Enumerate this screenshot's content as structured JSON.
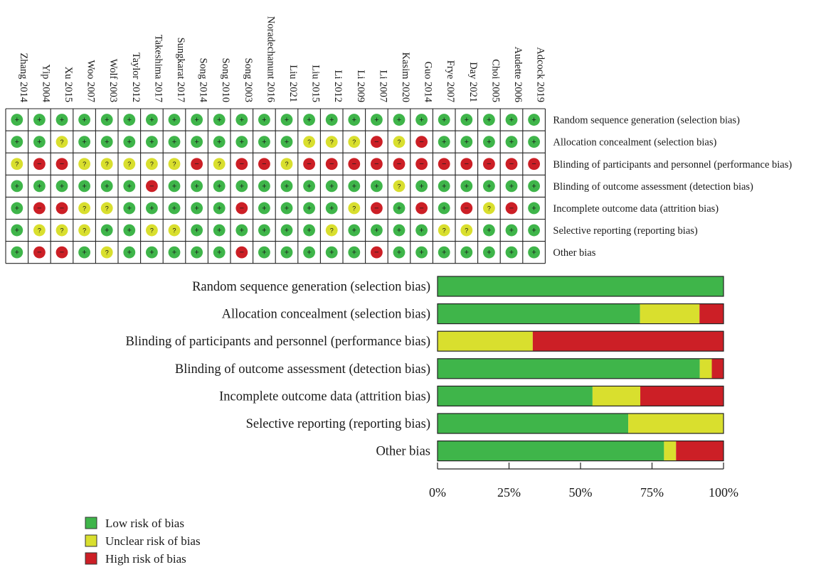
{
  "legend": {
    "low": "Low risk of bias",
    "unclear": "Unclear risk of bias",
    "high": "High risk of bias"
  },
  "colors": {
    "low": "#3fb54a",
    "unclear": "#d9df2e",
    "high": "#cc1f26"
  },
  "symbols": {
    "low": "+",
    "unclear": "?",
    "high": "−"
  },
  "chart_data": [
    {
      "type": "table",
      "studies": [
        "Zhang 2014",
        "Yip 2004",
        "Xu 2015",
        "Woo 2007",
        "Wolf 2003",
        "Taylor 2012",
        "Takeshima 2017",
        "Sungkarat 2017",
        "Song 2014",
        "Song 2010",
        "Song 2003",
        "Noradechanunt 2016",
        "Liu 2021",
        "Liu 2015",
        "Li 2012",
        "Li 2009",
        "Li 2007",
        "Kasim 2020",
        "Guo 2014",
        "Frye 2007",
        "Day 2021",
        "Choi 2005",
        "Audette 2006",
        "Adcock 2019"
      ],
      "domains": [
        "Random sequence generation (selection bias)",
        "Allocation concealment (selection bias)",
        "Blinding of participants and personnel (performance bias)",
        "Blinding of outcome assessment (detection bias)",
        "Incomplete outcome data (attrition bias)",
        "Selective reporting (reporting bias)",
        "Other bias"
      ],
      "judgements": [
        [
          "low",
          "low",
          "low",
          "low",
          "low",
          "low",
          "low",
          "low",
          "low",
          "low",
          "low",
          "low",
          "low",
          "low",
          "low",
          "low",
          "low",
          "low",
          "low",
          "low",
          "low",
          "low",
          "low",
          "low"
        ],
        [
          "low",
          "low",
          "unclear",
          "low",
          "low",
          "low",
          "low",
          "low",
          "low",
          "low",
          "low",
          "low",
          "low",
          "unclear",
          "unclear",
          "unclear",
          "high",
          "unclear",
          "high",
          "low",
          "low",
          "low",
          "low",
          "low"
        ],
        [
          "unclear",
          "high",
          "high",
          "unclear",
          "unclear",
          "unclear",
          "unclear",
          "unclear",
          "high",
          "unclear",
          "high",
          "high",
          "unclear",
          "high",
          "high",
          "high",
          "high",
          "high",
          "high",
          "high",
          "high",
          "high",
          "high",
          "high"
        ],
        [
          "low",
          "low",
          "low",
          "low",
          "low",
          "low",
          "high",
          "low",
          "low",
          "low",
          "low",
          "low",
          "low",
          "low",
          "low",
          "low",
          "low",
          "unclear",
          "low",
          "low",
          "low",
          "low",
          "low",
          "low"
        ],
        [
          "low",
          "high",
          "high",
          "unclear",
          "unclear",
          "low",
          "low",
          "low",
          "low",
          "low",
          "high",
          "low",
          "low",
          "low",
          "low",
          "unclear",
          "high",
          "low",
          "high",
          "low",
          "high",
          "unclear",
          "high",
          "low"
        ],
        [
          "low",
          "unclear",
          "unclear",
          "unclear",
          "low",
          "low",
          "unclear",
          "unclear",
          "low",
          "low",
          "low",
          "low",
          "low",
          "low",
          "unclear",
          "low",
          "low",
          "low",
          "low",
          "unclear",
          "unclear",
          "low",
          "low",
          "low"
        ],
        [
          "low",
          "high",
          "high",
          "low",
          "unclear",
          "low",
          "low",
          "low",
          "low",
          "low",
          "high",
          "low",
          "low",
          "low",
          "low",
          "low",
          "high",
          "low",
          "low",
          "low",
          "low",
          "low",
          "low",
          "low"
        ]
      ]
    },
    {
      "type": "bar",
      "stacked": true,
      "orientation": "horizontal",
      "categories": [
        "Random sequence generation (selection bias)",
        "Allocation concealment (selection bias)",
        "Blinding of participants and personnel (performance bias)",
        "Blinding of outcome assessment (detection bias)",
        "Incomplete outcome data (attrition bias)",
        "Selective reporting (reporting bias)",
        "Other bias"
      ],
      "series": [
        {
          "name": "Low risk of bias",
          "values": [
            100,
            70.8,
            0,
            91.7,
            54.2,
            66.7,
            79.2
          ]
        },
        {
          "name": "Unclear risk of bias",
          "values": [
            0,
            20.8,
            33.3,
            4.2,
            16.7,
            33.3,
            4.2
          ]
        },
        {
          "name": "High risk of bias",
          "values": [
            0,
            8.3,
            66.7,
            4.2,
            29.2,
            0,
            16.7
          ]
        }
      ],
      "xlim": [
        0,
        100
      ],
      "xticks": [
        "0%",
        "25%",
        "50%",
        "75%",
        "100%"
      ],
      "legend": "bottom-left"
    }
  ]
}
